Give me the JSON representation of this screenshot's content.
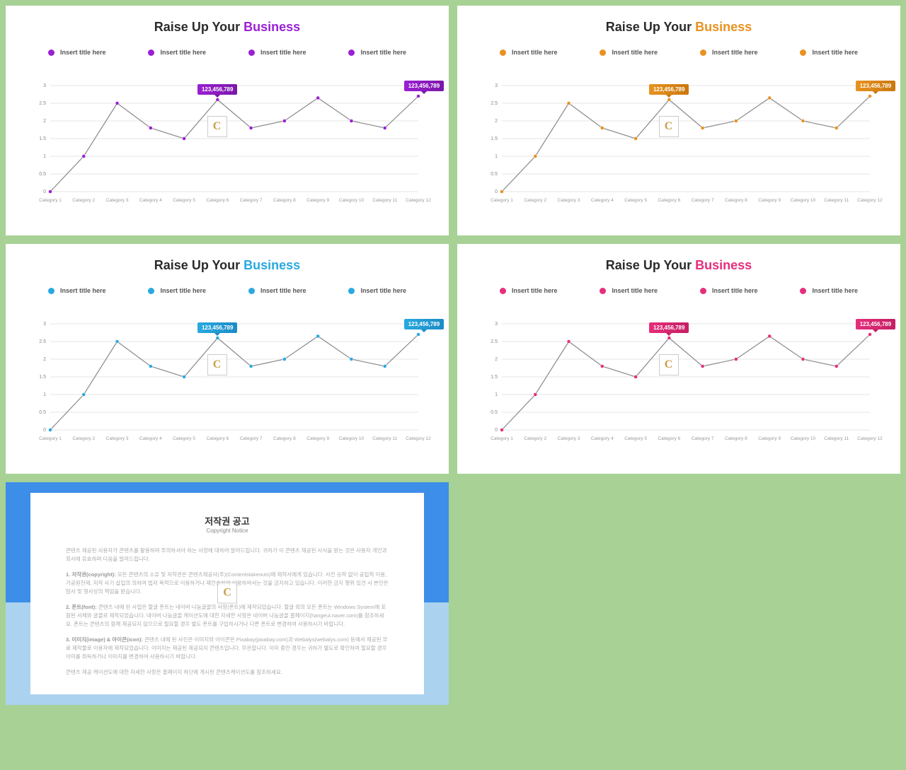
{
  "page_bg": "#a7d195",
  "panels": [
    {
      "accent": "#9b1fd4",
      "accentDark": "#7a17a8",
      "titleColor": "#9b1fd4"
    },
    {
      "accent": "#e8921f",
      "accentDark": "#c9780e",
      "titleColor": "#e8921f"
    },
    {
      "accent": "#29a9e0",
      "accentDark": "#1b8cc5",
      "titleColor": "#29a9e0"
    },
    {
      "accent": "#e62e7b",
      "accentDark": "#c51f64",
      "titleColor": "#e62e7b"
    }
  ],
  "title_prefix": "Raise Up Your ",
  "title_accent_word": "Business",
  "legend_item_label": "Insert title here",
  "legend_count": 4,
  "chart": {
    "categories": [
      "Category 1",
      "Category 2",
      "Category 3",
      "Category 4",
      "Category 5",
      "Category 6",
      "Category 7",
      "Category 8",
      "Category 9",
      "Category 10",
      "Category 11",
      "Category 12"
    ],
    "values": [
      0,
      1.0,
      2.5,
      1.8,
      1.5,
      2.6,
      1.8,
      2.0,
      2.65,
      2.0,
      1.8,
      2.7
    ],
    "ylim": [
      0,
      3
    ],
    "ytick_step": 0.5,
    "yticks": [
      0,
      0.5,
      1,
      1.5,
      2,
      2.5,
      3
    ],
    "grid_color": "#e5e5e5",
    "axis_color": "#bbbbbb",
    "line_color": "#888888",
    "background": "#ffffff",
    "marker_radius": 2.5
  },
  "callout_label": "123,456,789",
  "callout_indices": [
    5,
    11
  ],
  "copyright": {
    "title": "저작권 공고",
    "subtitle": "Copyright Notice",
    "top_bg": "#3d8ee8",
    "bottom_bg": "#abd3ef",
    "p1": "콘텐츠 제공된 사용자가 콘텐츠를 활용하며 주의하셔야 하는 사항에 대하여 알려드립니다. 귀하가 이 콘텐츠 제공된 서식을 받는 것은 사용자 개인과 회사에 유효하며 다음을 알려드립니다.",
    "h1": "1. 저작권(copyright):",
    "t1": " 모든 콘텐츠의 소유 및 저작권은 콘텐츠제공사(주)(Contentstakeouts)에 제작사에게 있습니다. 사전 승락 없이 공립적 이용, 가공원천제, 저작 사기 삽입의 의하여 법저 목적으로 이용하거나 재전송하여 이용하여서는 것을 금지하고 있습니다. 이러한 금지 행위 있건 시 본인은 탐사 및 형사상의 책임을 받습니다.",
    "h2": "2. 폰트(font):",
    "t2": " 콘텐츠 내에 된 사업은 할글 폰트는 네이버 나눔글꼴의 사항(폰트)에 제작되었습니다. 할글 외의 모든 폰트는 Windows System에 포함된 서체와 글꼴로 제작되었습니다. 네이버 나눔글꼴 캐이션도에 대한 자세한 사항은 네이버 나눔글꼴 홈페이지(hangeul.naver.com)를 참조하세요. 폰트는 콘텐츠의 함께 제공되지 않으므로 필요할 경우 별도 폰트를 구입하시거나 다른 폰트로 변경하여 사용하시기 바랍니다.",
    "h3": "3. 이미지(image) & 아이콘(icon):",
    "t3": " 콘텐츠 내에 된 사진은 이미지와 아이콘은 Pixabay(pixabay.com)과 Webalys(webalys.com) 등에서 제공된 무료 제작물로 이용자에 제작되었습니다. 이미지는 제공된 제공되지 콘텐츠입니다. 무관합니다. 이미 중안 경우는 귀하가 별도로 확인하여 필요할 경우 이미를 취득하거나 이미지를 변경하여 사용하시기 바랍니다.",
    "p2": "콘텐츠 제공 캐이션도에 대한 자세한 사항은 홈페이지 하단에 게시된 콘텐츠캐이션도를 참조하세요."
  }
}
